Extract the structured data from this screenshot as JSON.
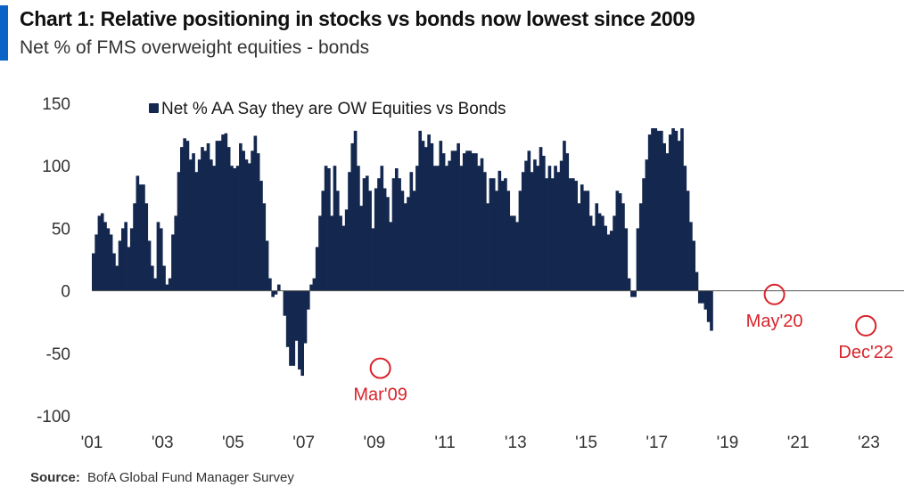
{
  "header": {
    "title": "Chart 1: Relative positioning in stocks vs bonds now lowest since 2009",
    "subtitle": "Net % of FMS overweight equities - bonds"
  },
  "footer": {
    "source_label": "Source:",
    "source_text": "BofA Global Fund Manager Survey"
  },
  "colors": {
    "bar": "#14284f",
    "annotation": "#d8232a",
    "accent": "#0a64c8"
  },
  "chart_data": {
    "type": "bar",
    "title": "",
    "xlabel": "",
    "ylabel": "",
    "ylim": [
      -100,
      150
    ],
    "xlim": [
      2001.0,
      2024.0
    ],
    "yticks": [
      150,
      100,
      50,
      0,
      -50,
      -100
    ],
    "xtick_labels": [
      "'01",
      "'03",
      "'05",
      "'07",
      "'09",
      "'11",
      "'13",
      "'15",
      "'17",
      "'19",
      "'21",
      "'23"
    ],
    "xtick_years": [
      2001,
      2003,
      2005,
      2007,
      2009,
      2011,
      2013,
      2015,
      2017,
      2019,
      2021,
      2023
    ],
    "grid": false,
    "legend_position": "top-left",
    "series": [
      {
        "name": "Net % AA Say they are OW Equities vs Bonds",
        "frequency": "monthly",
        "start": "2001-01",
        "values": [
          30,
          45,
          60,
          62,
          55,
          50,
          45,
          30,
          20,
          40,
          50,
          55,
          35,
          50,
          70,
          92,
          85,
          85,
          70,
          40,
          20,
          10,
          55,
          50,
          20,
          5,
          10,
          45,
          60,
          95,
          115,
          122,
          120,
          105,
          110,
          95,
          105,
          115,
          112,
          118,
          105,
          100,
          120,
          120,
          125,
          126,
          115,
          100,
          98,
          100,
          118,
          112,
          105,
          102,
          112,
          124,
          110,
          88,
          70,
          40,
          10,
          -5,
          -3,
          5,
          0,
          -20,
          -45,
          -60,
          -60,
          -40,
          -63,
          -68,
          -42,
          -15,
          5,
          10,
          35,
          60,
          80,
          100,
          98,
          60,
          100,
          80,
          60,
          52,
          65,
          95,
          118,
          128,
          100,
          68,
          90,
          92,
          80,
          50,
          82,
          90,
          100,
          82,
          75,
          55,
          90,
          98,
          90,
          80,
          70,
          75,
          95,
          80,
          100,
          128,
          120,
          115,
          125,
          118,
          100,
          100,
          120,
          110,
          100,
          104,
          112,
          112,
          118,
          100,
          110,
          112,
          112,
          110,
          110,
          100,
          106,
          95,
          70,
          90,
          90,
          80,
          96,
          88,
          90,
          80,
          60,
          60,
          55,
          80,
          95,
          104,
          112,
          95,
          105,
          100,
          115,
          108,
          90,
          100,
          90,
          100,
          95,
          104,
          120,
          110,
          90,
          90,
          88,
          70,
          85,
          80,
          80,
          60,
          52,
          70,
          62,
          60,
          52,
          45,
          48,
          60,
          80,
          78,
          70,
          50,
          10,
          -5,
          -5,
          50,
          70,
          90,
          105,
          125,
          130,
          130,
          128,
          128,
          118,
          110,
          125,
          130,
          128,
          120,
          130,
          100,
          80,
          55,
          40,
          15,
          -10,
          -10,
          -15,
          -25,
          -32,
          0,
          0,
          0,
          0,
          0,
          0,
          0,
          0,
          0,
          0,
          0,
          0,
          0,
          0,
          0,
          0,
          0,
          0,
          0,
          0,
          0,
          0
        ]
      }
    ],
    "annotations": [
      {
        "label": "Mar'09",
        "x": 2009.17,
        "y": -62
      },
      {
        "label": "May'20",
        "x": 2020.33,
        "y": -3
      },
      {
        "label": "Dec'22",
        "x": 2022.92,
        "y": -28
      }
    ]
  }
}
